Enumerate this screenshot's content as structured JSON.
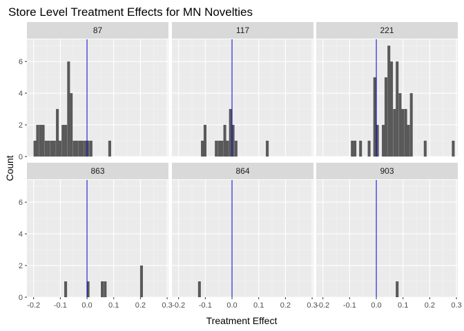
{
  "chart_data": {
    "type": "bar",
    "title": "Store Level Treatment Effects for MN Novelties",
    "xlabel": "Treatment Effect",
    "ylabel": "Count",
    "xlim": [
      -0.225,
      0.305
    ],
    "ylim": [
      0,
      7.4
    ],
    "x_ticks": [
      -0.2,
      -0.1,
      0.0,
      0.1,
      0.2,
      0.3
    ],
    "x_tick_labels": [
      "-0.2",
      "-0.1",
      "0.0",
      "0.1",
      "0.2",
      "0.3"
    ],
    "y_ticks": [
      0,
      2,
      4,
      6
    ],
    "y_tick_labels": [
      "0",
      "2",
      "4",
      "6"
    ],
    "bin_width": 0.0105,
    "reference_line": {
      "x": 0,
      "color": "#0000cc"
    },
    "bar_color": "#595959",
    "panel_background": "#ebebeb",
    "strip_background": "#d9d9d9",
    "grid": true,
    "facets": [
      {
        "label": "87",
        "bins": [
          {
            "x": -0.195,
            "count": 1
          },
          {
            "x": -0.185,
            "count": 2
          },
          {
            "x": -0.174,
            "count": 2
          },
          {
            "x": -0.164,
            "count": 2
          },
          {
            "x": -0.153,
            "count": 1
          },
          {
            "x": -0.143,
            "count": 1
          },
          {
            "x": -0.132,
            "count": 1
          },
          {
            "x": -0.122,
            "count": 1
          },
          {
            "x": -0.111,
            "count": 3
          },
          {
            "x": -0.101,
            "count": 1
          },
          {
            "x": -0.09,
            "count": 2
          },
          {
            "x": -0.08,
            "count": 2
          },
          {
            "x": -0.069,
            "count": 6
          },
          {
            "x": -0.059,
            "count": 4
          },
          {
            "x": -0.048,
            "count": 1
          },
          {
            "x": -0.038,
            "count": 1
          },
          {
            "x": -0.027,
            "count": 1
          },
          {
            "x": -0.017,
            "count": 1
          },
          {
            "x": -0.006,
            "count": 1
          },
          {
            "x": 0.004,
            "count": 1
          },
          {
            "x": 0.015,
            "count": 1
          },
          {
            "x": 0.085,
            "count": 1
          }
        ]
      },
      {
        "label": "117",
        "bins": [
          {
            "x": -0.111,
            "count": 1
          },
          {
            "x": -0.101,
            "count": 2
          },
          {
            "x": -0.059,
            "count": 1
          },
          {
            "x": -0.048,
            "count": 1
          },
          {
            "x": -0.038,
            "count": 1
          },
          {
            "x": -0.027,
            "count": 2
          },
          {
            "x": -0.017,
            "count": 1
          },
          {
            "x": -0.006,
            "count": 3
          },
          {
            "x": 0.004,
            "count": 2
          },
          {
            "x": 0.015,
            "count": 1
          },
          {
            "x": 0.132,
            "count": 1
          }
        ]
      },
      {
        "label": "221",
        "bins": [
          {
            "x": -0.09,
            "count": 1
          },
          {
            "x": -0.08,
            "count": 1
          },
          {
            "x": -0.059,
            "count": 1
          },
          {
            "x": -0.027,
            "count": 1
          },
          {
            "x": -0.006,
            "count": 5
          },
          {
            "x": 0.004,
            "count": 2
          },
          {
            "x": 0.026,
            "count": 2
          },
          {
            "x": 0.036,
            "count": 5
          },
          {
            "x": 0.047,
            "count": 7
          },
          {
            "x": 0.057,
            "count": 6
          },
          {
            "x": 0.068,
            "count": 3
          },
          {
            "x": 0.078,
            "count": 6
          },
          {
            "x": 0.089,
            "count": 4
          },
          {
            "x": 0.099,
            "count": 3
          },
          {
            "x": 0.11,
            "count": 3
          },
          {
            "x": 0.12,
            "count": 2
          },
          {
            "x": 0.131,
            "count": 4
          },
          {
            "x": 0.183,
            "count": 1
          },
          {
            "x": 0.288,
            "count": 1
          }
        ]
      },
      {
        "label": "863",
        "bins": [
          {
            "x": -0.08,
            "count": 1
          },
          {
            "x": 0.004,
            "count": 1
          },
          {
            "x": 0.057,
            "count": 1
          },
          {
            "x": 0.068,
            "count": 1
          },
          {
            "x": 0.204,
            "count": 2
          }
        ]
      },
      {
        "label": "864",
        "bins": [
          {
            "x": -0.122,
            "count": 1
          }
        ]
      },
      {
        "label": "903",
        "bins": [
          {
            "x": 0.078,
            "count": 1
          }
        ]
      }
    ]
  }
}
